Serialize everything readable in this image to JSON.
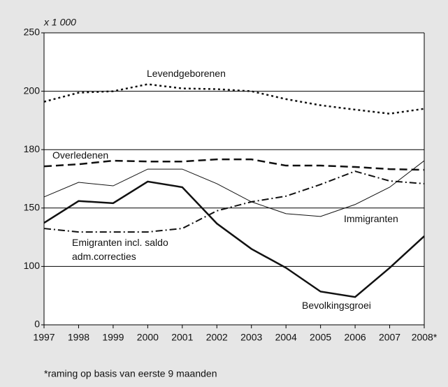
{
  "chart_data": {
    "type": "line",
    "y_unit_label": "x 1 000",
    "footnote": "*raming op basis van  eerste 9 maanden",
    "categories": [
      "1997",
      "1998",
      "1999",
      "2000",
      "2001",
      "2002",
      "2003",
      "2004",
      "2005",
      "2006",
      "2007",
      "2008*"
    ],
    "ylim": [
      0,
      250
    ],
    "yticks": [
      0,
      100,
      150,
      180,
      200,
      250
    ],
    "grid": true,
    "series": [
      {
        "name": "Levendgeborenen",
        "color": "#111111",
        "dash": "dotted",
        "values": [
          196.4,
          199.5,
          200,
          206,
          202.4,
          201.8,
          200,
          197.3,
          195.2,
          193.7,
          192.3,
          194
        ]
      },
      {
        "name": "Overledenen",
        "color": "#111111",
        "dash": "dashed",
        "values": [
          171.4,
          172.5,
          174.3,
          173.9,
          173.9,
          175,
          175,
          171.8,
          171.8,
          171.1,
          170,
          169.6
        ]
      },
      {
        "name": "Immigranten",
        "color": "#111111",
        "dash": "thin",
        "values": [
          155.7,
          163.2,
          161.4,
          170,
          170,
          162.5,
          153.2,
          145.2,
          142.8,
          151.8,
          160.7,
          174.3
        ]
      },
      {
        "name": "Emigranten incl. saldo adm.correcties",
        "color": "#111111",
        "dash": "dashdot",
        "values": [
          132.5,
          129.5,
          129.5,
          129.5,
          132.5,
          147.6,
          153.2,
          156.1,
          162.1,
          168.9,
          163.9,
          162.5
        ]
      },
      {
        "name": "Bevolkingsgroei",
        "color": "#111111",
        "dash": "solid",
        "values": [
          137.3,
          153.6,
          152.5,
          163.6,
          160.7,
          136.7,
          115,
          97.6,
          57,
          47.6,
          97.6,
          125.9
        ]
      }
    ]
  }
}
